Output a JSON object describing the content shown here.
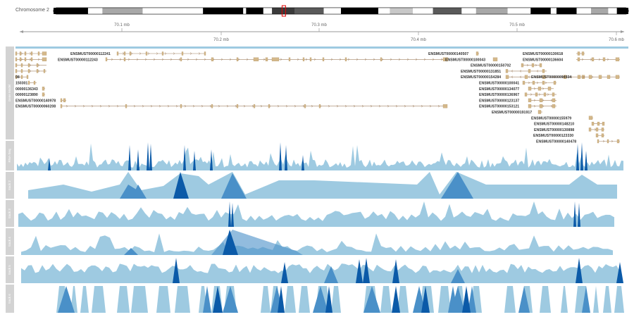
{
  "chromosome": {
    "label": "Chromosome 2",
    "bands": [
      {
        "start": 0.0,
        "end": 0.06,
        "color": "#000000"
      },
      {
        "start": 0.06,
        "end": 0.085,
        "color": "#ffffff"
      },
      {
        "start": 0.085,
        "end": 0.155,
        "color": "#a8a8a8"
      },
      {
        "start": 0.155,
        "end": 0.26,
        "color": "#ffffff"
      },
      {
        "start": 0.26,
        "end": 0.33,
        "color": "#000000"
      },
      {
        "start": 0.33,
        "end": 0.335,
        "color": "#ffffff"
      },
      {
        "start": 0.335,
        "end": 0.365,
        "color": "#000000"
      },
      {
        "start": 0.365,
        "end": 0.38,
        "color": "#ffffff"
      },
      {
        "start": 0.38,
        "end": 0.42,
        "color": "#3a3a3a"
      },
      {
        "start": 0.42,
        "end": 0.47,
        "color": "#5a5a5a"
      },
      {
        "start": 0.47,
        "end": 0.5,
        "color": "#ffffff"
      },
      {
        "start": 0.5,
        "end": 0.565,
        "color": "#000000"
      },
      {
        "start": 0.565,
        "end": 0.585,
        "color": "#ffffff"
      },
      {
        "start": 0.585,
        "end": 0.625,
        "color": "#c8c8c8"
      },
      {
        "start": 0.625,
        "end": 0.66,
        "color": "#ffffff"
      },
      {
        "start": 0.66,
        "end": 0.71,
        "color": "#5a5a5a"
      },
      {
        "start": 0.71,
        "end": 0.735,
        "color": "#ffffff"
      },
      {
        "start": 0.735,
        "end": 0.79,
        "color": "#a8a8a8"
      },
      {
        "start": 0.79,
        "end": 0.83,
        "color": "#ffffff"
      },
      {
        "start": 0.83,
        "end": 0.865,
        "color": "#000000"
      },
      {
        "start": 0.865,
        "end": 0.875,
        "color": "#ffffff"
      },
      {
        "start": 0.875,
        "end": 0.91,
        "color": "#000000"
      },
      {
        "start": 0.91,
        "end": 0.935,
        "color": "#ffffff"
      },
      {
        "start": 0.935,
        "end": 0.965,
        "color": "#a8a8a8"
      },
      {
        "start": 0.965,
        "end": 0.98,
        "color": "#ffffff"
      },
      {
        "start": 0.98,
        "end": 1.0,
        "color": "#000000"
      }
    ],
    "highlight_fraction": 0.4
  },
  "axis": {
    "top_ticks": [
      "70.1 mb",
      "70.3 mb",
      "70.5 mb"
    ],
    "bottom_ticks": [
      "70.2 mb",
      "70.4 mb",
      "70.6 mb"
    ]
  },
  "tracks": {
    "gene_model_label": "Gene Model",
    "signal_labels": [
      "RNA-Seq",
      "track 2",
      "track 3",
      "track 4",
      "track 5",
      "track 6"
    ]
  },
  "transcripts": [
    {
      "label": "ENSMUST00000112241",
      "row": 0,
      "side": "left"
    },
    {
      "label": "ENSMUST00000112243",
      "row": 1,
      "side": "left"
    },
    {
      "label": "08",
      "row": 4,
      "side": "left"
    },
    {
      "label": "150301",
      "row": 5,
      "side": "left"
    },
    {
      "label": "00000136343",
      "row": 6,
      "side": "left"
    },
    {
      "label": "00000123890",
      "row": 7,
      "side": "left"
    },
    {
      "label": "ENSMUST00000140978",
      "row": 8,
      "side": "left"
    },
    {
      "label": "ENSMUST00000060208",
      "row": 9,
      "side": "left"
    },
    {
      "label": "ENSMUST00000140507",
      "row": 0,
      "side": "mid"
    },
    {
      "label": "ENSMUST00000100043",
      "row": 1,
      "side": "mid"
    },
    {
      "label": "ENSMUST00000150702",
      "row": 2,
      "side": "mid"
    },
    {
      "label": "ENSMUST00000131851",
      "row": 3,
      "side": "mid"
    },
    {
      "label": "ENSMUST00000154284",
      "row": 4,
      "side": "mid"
    },
    {
      "label": "ENSMUST00000100041",
      "row": 5,
      "side": "mid"
    },
    {
      "label": "ENSMUST00000134077",
      "row": 6,
      "side": "mid"
    },
    {
      "label": "ENSMUST00000136967",
      "row": 7,
      "side": "mid"
    },
    {
      "label": "ENSMUST00000123137",
      "row": 8,
      "side": "mid"
    },
    {
      "label": "ENSMUST00000153121",
      "row": 9,
      "side": "mid"
    },
    {
      "label": "ENSMUST00000191917",
      "row": 10,
      "side": "mid"
    },
    {
      "label": "ENSMUST00000130618",
      "row": 0,
      "side": "right"
    },
    {
      "label": "ENSMUST00000136604",
      "row": 1,
      "side": "right"
    },
    {
      "label": "ENSMUST00000094934",
      "row": 4,
      "side": "right"
    },
    {
      "label": "ENSMUST00000155979",
      "row": 11,
      "side": "right"
    },
    {
      "label": "ENSMUST00000148210",
      "row": 12,
      "side": "right"
    },
    {
      "label": "ENSMUST00000130898",
      "row": 13,
      "side": "right"
    },
    {
      "label": "ENSMUST00000123330",
      "row": 14,
      "side": "right"
    },
    {
      "label": "ENSMUST00000140478",
      "row": 15,
      "side": "right"
    }
  ],
  "colors": {
    "light_blue": "#9ecae1",
    "mid_blue": "#4a90c8",
    "dark_blue": "#0b5aa8",
    "exon": "#d4b88a",
    "intron": "#a08060",
    "track_label_bg": "#d3d3d3",
    "axis": "#999999"
  }
}
